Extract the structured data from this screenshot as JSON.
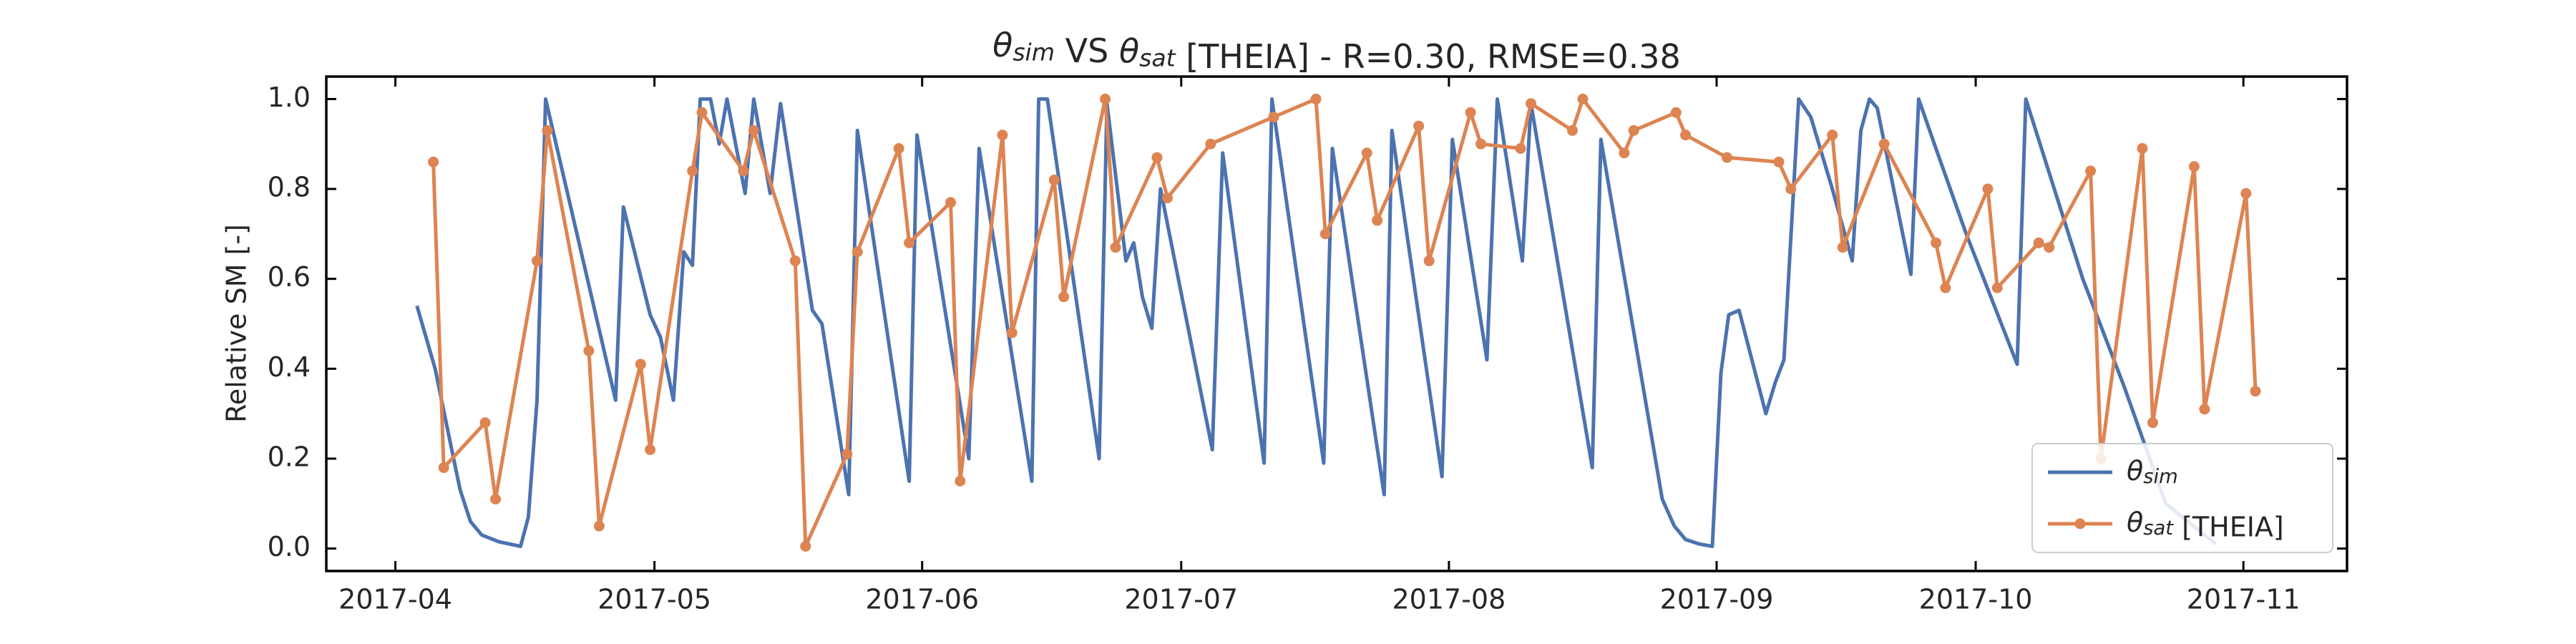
{
  "chart_data": {
    "type": "line",
    "title": "θsim VS θsat [THEIA] - R=0.30, RMSE=0.38",
    "y_label": "Relative SM [-]",
    "xlim": [
      83,
      317
    ],
    "xticks": [
      {
        "value": 91,
        "label": "2017-04"
      },
      {
        "value": 121,
        "label": "2017-05"
      },
      {
        "value": 152,
        "label": "2017-06"
      },
      {
        "value": 182,
        "label": "2017-07"
      },
      {
        "value": 213,
        "label": "2017-08"
      },
      {
        "value": 244,
        "label": "2017-09"
      },
      {
        "value": 274,
        "label": "2017-10"
      },
      {
        "value": 305,
        "label": "2017-11"
      }
    ],
    "ylim": [
      -0.05,
      1.05
    ],
    "yticks": [
      {
        "value": 0,
        "label": "0.0"
      },
      0.2,
      0.4,
      0.6,
      0.8,
      {
        "value": 1,
        "label": "1.0"
      }
    ],
    "legend": "lower right",
    "series": [
      {
        "name": "θsim",
        "color": "#4c72b0",
        "markers": false,
        "x": [
          93.5,
          95.6,
          97.2,
          98.5,
          99.7,
          101,
          103,
          105.5,
          106.4,
          107.4,
          108.4,
          116.5,
          117.4,
          120.5,
          121.7,
          123.2,
          124.4,
          125.4,
          126.3,
          127.5,
          128.5,
          129.4,
          131.5,
          132.5,
          134.4,
          135.6,
          139.3,
          140.4,
          143.5,
          144.5,
          150.5,
          151.4,
          157.4,
          158.6,
          164.7,
          165.5,
          166.5,
          172.5,
          173.4,
          175.6,
          176.5,
          177.5,
          178.6,
          179.6,
          185.6,
          186.8,
          191.6,
          192.5,
          198.5,
          199.5,
          205.5,
          206.4,
          212.2,
          213.4,
          217.4,
          218.6,
          221.5,
          222.5,
          229.6,
          230.6,
          237.7,
          239.1,
          240.4,
          242,
          243.5,
          244.5,
          245.4,
          246.6,
          249.7,
          250.8,
          251.8,
          253.5,
          254.9,
          257.4,
          259.7,
          260.7,
          261.7,
          262.6,
          266.5,
          267.4,
          269.4,
          272.9,
          278.8,
          279.8,
          286.4,
          291.2,
          296,
          301.8
        ],
        "values": [
          0.54,
          0.4,
          0.25,
          0.13,
          0.06,
          0.03,
          0.015,
          0.005,
          0.07,
          0.33,
          1.0,
          0.33,
          0.76,
          0.52,
          0.47,
          0.33,
          0.66,
          0.63,
          1.0,
          1.0,
          0.9,
          1.0,
          0.79,
          1.0,
          0.79,
          0.99,
          0.53,
          0.5,
          0.12,
          0.93,
          0.15,
          0.92,
          0.2,
          0.89,
          0.15,
          1.0,
          1.0,
          0.2,
          0.99,
          0.64,
          0.68,
          0.56,
          0.49,
          0.8,
          0.22,
          0.88,
          0.19,
          1.0,
          0.19,
          0.89,
          0.12,
          0.93,
          0.16,
          0.91,
          0.42,
          1.0,
          0.64,
          0.99,
          0.18,
          0.91,
          0.11,
          0.05,
          0.02,
          0.01,
          0.005,
          0.39,
          0.52,
          0.53,
          0.3,
          0.37,
          0.42,
          1.0,
          0.96,
          0.8,
          0.64,
          0.93,
          1.0,
          0.98,
          0.61,
          1.0,
          0.89,
          0.7,
          0.41,
          1.0,
          0.6,
          0.36,
          0.1,
          0.01
        ]
      },
      {
        "name": "θsat [THEIA]",
        "color": "#dd8452",
        "markers": true,
        "x": [
          95.4,
          96.6,
          101.4,
          102.6,
          107.4,
          108.6,
          113.4,
          114.6,
          119.4,
          120.5,
          125.4,
          126.5,
          131.3,
          132.5,
          137.3,
          138.5,
          143.3,
          144.5,
          149.3,
          150.5,
          155.3,
          156.4,
          161.3,
          162.4,
          167.3,
          168.4,
          173.2,
          174.4,
          179.2,
          180.4,
          185.4,
          192.7,
          197.6,
          198.7,
          203.5,
          204.7,
          209.5,
          210.7,
          215.5,
          216.7,
          221.3,
          222.5,
          227.3,
          228.5,
          233.3,
          234.4,
          239.3,
          240.4,
          245.2,
          251.2,
          252.6,
          257.4,
          258.6,
          263.4,
          269.4,
          270.5,
          275.4,
          276.5,
          281.3,
          282.5,
          287.3,
          288.5,
          293.3,
          294.5,
          299.3,
          300.5,
          305.3,
          306.4
        ],
        "values": [
          0.86,
          0.18,
          0.28,
          0.11,
          0.64,
          0.93,
          0.44,
          0.05,
          0.41,
          0.22,
          0.84,
          0.97,
          0.84,
          0.93,
          0.64,
          0.005,
          0.21,
          0.66,
          0.89,
          0.68,
          0.77,
          0.15,
          0.92,
          0.48,
          0.82,
          0.56,
          1.0,
          0.67,
          0.87,
          0.78,
          0.9,
          0.96,
          1.0,
          0.7,
          0.88,
          0.73,
          0.94,
          0.64,
          0.97,
          0.9,
          0.89,
          0.99,
          0.93,
          1.0,
          0.88,
          0.93,
          0.97,
          0.92,
          0.87,
          0.86,
          0.8,
          0.92,
          0.67,
          0.9,
          0.68,
          0.58,
          0.8,
          0.58,
          0.68,
          0.67,
          0.84,
          0.2,
          0.89,
          0.28,
          0.85,
          0.31,
          0.79,
          0.35
        ]
      }
    ]
  }
}
